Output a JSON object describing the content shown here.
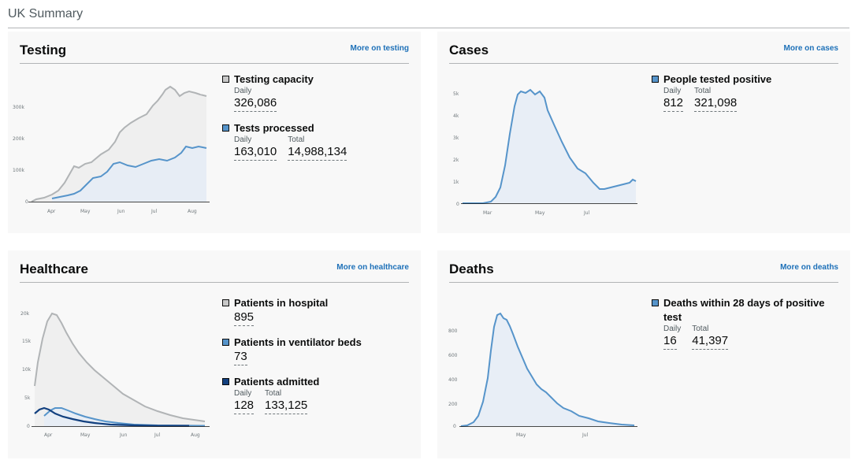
{
  "page": {
    "title": "UK Summary"
  },
  "colors": {
    "grey_line": "#b1b4b6",
    "grey_fill": "#f0f0f0",
    "blue_line": "#5694ca",
    "blue_fill": "#e8eef6",
    "navy_line": "#12407f",
    "link": "#1d70b8"
  },
  "testing": {
    "title": "Testing",
    "more_link": "More on testing",
    "y_ticks": [
      "300k",
      "200k",
      "100k",
      "0"
    ],
    "x_ticks": [
      "Apr",
      "May",
      "Jun",
      "Jul",
      "Aug"
    ],
    "metrics": [
      {
        "label": "Testing capacity",
        "color": "#c8c8c8",
        "values": [
          {
            "label": "Daily",
            "value": "326,086"
          }
        ]
      },
      {
        "label": "Tests processed",
        "color": "#5694ca",
        "values": [
          {
            "label": "Daily",
            "value": "163,010"
          },
          {
            "label": "Total",
            "value": "14,988,134"
          }
        ]
      }
    ]
  },
  "cases": {
    "title": "Cases",
    "more_link": "More on cases",
    "y_ticks": [
      "5k",
      "4k",
      "3k",
      "2k",
      "1k",
      "0"
    ],
    "x_ticks": [
      "Mar",
      "May",
      "Jul"
    ],
    "metrics": [
      {
        "label": "People tested positive",
        "color": "#5694ca",
        "values": [
          {
            "label": "Daily",
            "value": "812"
          },
          {
            "label": "Total",
            "value": "321,098"
          }
        ]
      }
    ]
  },
  "healthcare": {
    "title": "Healthcare",
    "more_link": "More on healthcare",
    "y_ticks": [
      "20k",
      "15k",
      "10k",
      "5k",
      "0"
    ],
    "x_ticks": [
      "Apr",
      "May",
      "Jun",
      "Jul",
      "Aug"
    ],
    "metrics": [
      {
        "label": "Patients in hospital",
        "color": "#c8c8c8",
        "values": [
          {
            "label": "",
            "value": "895"
          }
        ]
      },
      {
        "label": "Patients in ventilator beds",
        "color": "#5694ca",
        "values": [
          {
            "label": "",
            "value": "73"
          }
        ]
      },
      {
        "label": "Patients admitted",
        "color": "#12407f",
        "values": [
          {
            "label": "Daily",
            "value": "128"
          },
          {
            "label": "Total",
            "value": "133,125"
          }
        ]
      }
    ]
  },
  "deaths": {
    "title": "Deaths",
    "more_link": "More on deaths",
    "y_ticks": [
      "800",
      "600",
      "400",
      "200",
      "0"
    ],
    "x_ticks": [
      "May",
      "Jul"
    ],
    "metrics": [
      {
        "label": "Deaths within 28 days of positive test",
        "color": "#5694ca",
        "values": [
          {
            "label": "Daily",
            "value": "16"
          },
          {
            "label": "Total",
            "value": "41,397"
          }
        ]
      }
    ]
  }
}
